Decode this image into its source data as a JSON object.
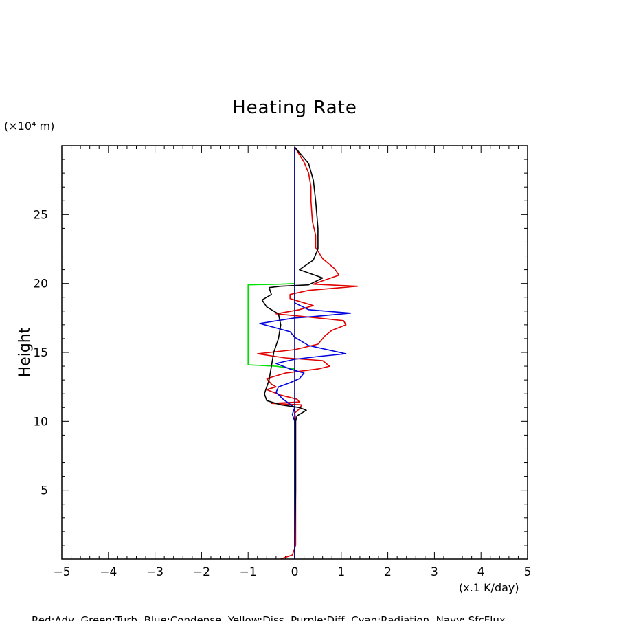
{
  "chart_data": {
    "type": "line",
    "title": "Heating Rate",
    "ylabel": "Height",
    "y_unit_label": "(×10⁴ m)",
    "x_unit_label": "(x.1 K/day)",
    "xlim": [
      -5,
      5
    ],
    "ylim": [
      0,
      30
    ],
    "x_ticks": [
      -5,
      -4,
      -3,
      -2,
      -1,
      0,
      1,
      2,
      3,
      4,
      5
    ],
    "y_ticks": [
      5,
      10,
      15,
      20,
      25
    ],
    "footer": "Red:Adv  Green:Turb  Blue:Condense  Yellow:Diss  Purple:Diff  Cyan:Radiation  Navy: SfcFlux",
    "series": [
      {
        "name": "Red:Adv",
        "color": "#e00000",
        "points": [
          [
            -0.3,
            0.0
          ],
          [
            -0.05,
            0.3
          ],
          [
            0.02,
            1.0
          ],
          [
            0.02,
            6.0
          ],
          [
            0.02,
            10.2
          ],
          [
            0.0,
            10.6
          ],
          [
            0.1,
            10.9
          ],
          [
            0.15,
            11.2
          ],
          [
            -0.5,
            11.3
          ],
          [
            0.1,
            11.4
          ],
          [
            0.05,
            11.6
          ],
          [
            -0.3,
            11.9
          ],
          [
            -0.6,
            12.3
          ],
          [
            -0.4,
            12.5
          ],
          [
            -0.5,
            12.7
          ],
          [
            -0.6,
            13.1
          ],
          [
            -0.2,
            13.5
          ],
          [
            0.5,
            13.8
          ],
          [
            0.75,
            14.0
          ],
          [
            0.6,
            14.4
          ],
          [
            -0.2,
            14.6
          ],
          [
            -0.8,
            14.9
          ],
          [
            0.0,
            15.2
          ],
          [
            0.5,
            15.6
          ],
          [
            0.65,
            16.2
          ],
          [
            0.8,
            16.6
          ],
          [
            1.1,
            17.0
          ],
          [
            1.05,
            17.3
          ],
          [
            0.2,
            17.6
          ],
          [
            -0.4,
            17.8
          ],
          [
            0.1,
            18.1
          ],
          [
            0.4,
            18.4
          ],
          [
            0.2,
            18.6
          ],
          [
            -0.1,
            18.9
          ],
          [
            -0.1,
            19.2
          ],
          [
            0.3,
            19.5
          ],
          [
            1.35,
            19.8
          ],
          [
            0.4,
            19.95
          ],
          [
            0.6,
            20.2
          ],
          [
            0.95,
            20.6
          ],
          [
            0.85,
            21.1
          ],
          [
            0.6,
            21.8
          ],
          [
            0.45,
            22.6
          ],
          [
            0.45,
            23.5
          ],
          [
            0.38,
            24.5
          ],
          [
            0.35,
            26.0
          ],
          [
            0.35,
            27.0
          ],
          [
            0.3,
            28.0
          ],
          [
            0.2,
            28.8
          ],
          [
            0.0,
            29.9
          ]
        ]
      },
      {
        "name": "Green:Turb",
        "color": "#00e000",
        "points": [
          [
            0.0,
            13.8
          ],
          [
            -0.4,
            14.0
          ],
          [
            -1.0,
            14.1
          ],
          [
            -1.0,
            17.0
          ],
          [
            -1.0,
            19.9
          ],
          [
            -0.3,
            19.95
          ],
          [
            0.0,
            20.0
          ]
        ]
      },
      {
        "name": "Blue:Condense",
        "color": "#0000e0",
        "points": [
          [
            0.0,
            0.0
          ],
          [
            0.0,
            10.0
          ],
          [
            -0.05,
            10.5
          ],
          [
            0.0,
            11.0
          ],
          [
            -0.25,
            11.6
          ],
          [
            -0.4,
            12.1
          ],
          [
            -0.35,
            12.5
          ],
          [
            -0.1,
            12.8
          ],
          [
            0.1,
            13.1
          ],
          [
            0.2,
            13.5
          ],
          [
            -0.1,
            13.8
          ],
          [
            -0.4,
            14.2
          ],
          [
            0.0,
            14.5
          ],
          [
            0.5,
            14.7
          ],
          [
            1.1,
            14.9
          ],
          [
            0.3,
            15.5
          ],
          [
            0.0,
            16.1
          ],
          [
            -0.1,
            16.5
          ],
          [
            -0.75,
            17.1
          ],
          [
            0.0,
            17.5
          ],
          [
            0.4,
            17.6
          ],
          [
            1.2,
            17.85
          ],
          [
            0.3,
            18.1
          ],
          [
            0.0,
            18.6
          ],
          [
            0.0,
            19.2
          ],
          [
            0.0,
            20.0
          ],
          [
            0.0,
            29.9
          ]
        ]
      },
      {
        "name": "Black",
        "color": "#000000",
        "points": [
          [
            0.0,
            0.0
          ],
          [
            0.02,
            5.0
          ],
          [
            0.02,
            10.0
          ],
          [
            0.05,
            10.4
          ],
          [
            0.25,
            10.8
          ],
          [
            0.1,
            11.0
          ],
          [
            -0.3,
            11.2
          ],
          [
            -0.6,
            11.5
          ],
          [
            -0.65,
            12.0
          ],
          [
            -0.55,
            13.0
          ],
          [
            -0.5,
            14.0
          ],
          [
            -0.45,
            15.0
          ],
          [
            -0.35,
            16.0
          ],
          [
            -0.3,
            17.0
          ],
          [
            -0.35,
            17.8
          ],
          [
            -0.6,
            18.3
          ],
          [
            -0.7,
            18.8
          ],
          [
            -0.5,
            19.2
          ],
          [
            -0.55,
            19.7
          ],
          [
            -0.3,
            19.8
          ],
          [
            0.3,
            19.9
          ],
          [
            0.6,
            20.4
          ],
          [
            0.1,
            21.0
          ],
          [
            0.4,
            21.7
          ],
          [
            0.5,
            22.5
          ],
          [
            0.5,
            24.0
          ],
          [
            0.45,
            26.0
          ],
          [
            0.4,
            27.5
          ],
          [
            0.3,
            28.7
          ],
          [
            0.0,
            29.9
          ]
        ]
      },
      {
        "name": "Navy: SfcFlux",
        "color": "#000080",
        "points": [
          [
            0.0,
            0.0
          ],
          [
            0.0,
            29.9
          ]
        ]
      }
    ]
  }
}
